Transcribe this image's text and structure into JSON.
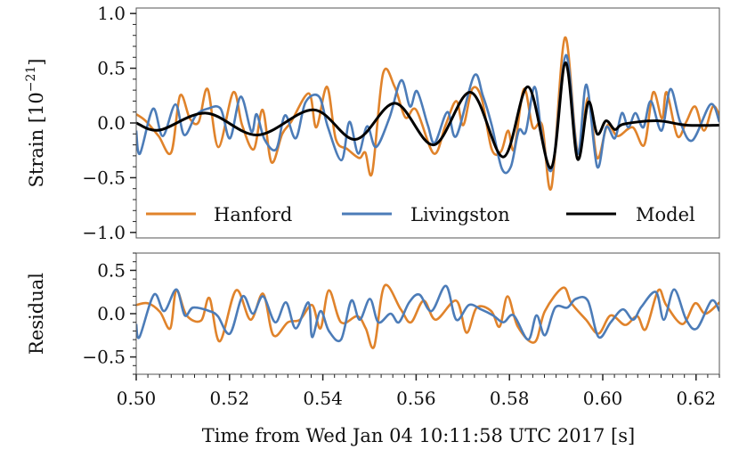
{
  "chart_data": [
    {
      "type": "line",
      "panel": "top",
      "ylabel": "Strain [10",
      "ylabel_exponent": "−21",
      "ylabel_suffix": "]",
      "xlim": [
        0.5,
        0.625
      ],
      "ylim": [
        -1.05,
        1.05
      ],
      "yticks": [
        1.0,
        0.5,
        0.0,
        -0.5,
        -1.0
      ],
      "ytick_labels": [
        "1.0",
        "0.5",
        "0.0",
        "−0.5",
        "−1.0"
      ],
      "grid": false,
      "legend": {
        "placement": "bottom",
        "entries": [
          "Hanford",
          "Livingston",
          "Model"
        ]
      },
      "series": [
        {
          "name": "Hanford",
          "color": "#e0832b",
          "x": [
            0.5,
            0.502,
            0.5048,
            0.5075,
            0.5094,
            0.5115,
            0.5134,
            0.5153,
            0.5176,
            0.5208,
            0.5227,
            0.5252,
            0.5271,
            0.529,
            0.5313,
            0.5332,
            0.537,
            0.5386,
            0.5409,
            0.5428,
            0.5453,
            0.5478,
            0.5491,
            0.5506,
            0.5529,
            0.5554,
            0.5577,
            0.56,
            0.5638,
            0.5663,
            0.5686,
            0.5701,
            0.572,
            0.574,
            0.5762,
            0.5782,
            0.5797,
            0.581,
            0.5831,
            0.585,
            0.587,
            0.589,
            0.5919,
            0.5946,
            0.5969,
            0.5988,
            0.601,
            0.6032,
            0.6064,
            0.6089,
            0.6108,
            0.6127,
            0.6137,
            0.616,
            0.6179,
            0.6198,
            0.6217,
            0.6236,
            0.625
          ],
          "y": [
            0.08,
            0.02,
            -0.12,
            -0.27,
            0.25,
            0.04,
            0.01,
            0.31,
            -0.22,
            0.28,
            -0.02,
            -0.24,
            0.12,
            -0.36,
            -0.1,
            0.01,
            0.27,
            -0.04,
            0.33,
            -0.15,
            -0.24,
            -0.32,
            -0.27,
            -0.45,
            0.45,
            0.33,
            0.05,
            0.12,
            -0.28,
            -0.02,
            0.2,
            -0.02,
            0.31,
            0.23,
            -0.24,
            -0.26,
            -0.07,
            -0.24,
            0.31,
            -0.04,
            -0.02,
            -0.59,
            0.78,
            -0.26,
            0.23,
            -0.32,
            -0.02,
            -0.12,
            -0.04,
            -0.2,
            0.28,
            0.04,
            0.28,
            -0.12,
            0.01,
            0.15,
            -0.07,
            0.15,
            0.07
          ]
        },
        {
          "name": "Livingston",
          "color": "#4c7cb8",
          "x": [
            0.5,
            0.5008,
            0.5036,
            0.5057,
            0.5084,
            0.5103,
            0.5128,
            0.5153,
            0.5181,
            0.5201,
            0.5224,
            0.5247,
            0.5258,
            0.5275,
            0.53,
            0.5319,
            0.5342,
            0.5363,
            0.5392,
            0.5411,
            0.544,
            0.5457,
            0.5476,
            0.5495,
            0.5514,
            0.5543,
            0.5568,
            0.5587,
            0.5602,
            0.5625,
            0.564,
            0.5667,
            0.5686,
            0.5724,
            0.5743,
            0.5762,
            0.5784,
            0.5803,
            0.582,
            0.5835,
            0.5854,
            0.587,
            0.5892,
            0.5921,
            0.5946,
            0.5965,
            0.5988,
            0.6007,
            0.6026,
            0.6041,
            0.6055,
            0.607,
            0.6087,
            0.6103,
            0.6126,
            0.6145,
            0.6166,
            0.6192,
            0.6231,
            0.625
          ],
          "y": [
            -0.07,
            -0.28,
            0.13,
            -0.12,
            0.17,
            -0.11,
            0.07,
            0.13,
            0.13,
            -0.14,
            0.24,
            -0.08,
            0.08,
            -0.15,
            -0.24,
            0.07,
            -0.14,
            0.19,
            0.24,
            -0.04,
            -0.34,
            0.01,
            -0.28,
            -0.03,
            -0.22,
            0.05,
            0.39,
            0.15,
            0.29,
            -0.02,
            -0.18,
            0.1,
            -0.12,
            0.43,
            0.25,
            -0.02,
            -0.42,
            -0.4,
            -0.07,
            -0.08,
            0.33,
            -0.12,
            -0.41,
            0.62,
            -0.28,
            0.35,
            -0.4,
            -0.04,
            -0.14,
            0.09,
            -0.04,
            0.09,
            -0.04,
            0.2,
            -0.07,
            0.31,
            0.01,
            -0.16,
            0.17,
            0.01
          ]
        },
        {
          "name": "Model",
          "color": "#000000",
          "x": [
            0.5,
            0.505,
            0.515,
            0.526,
            0.538,
            0.547,
            0.5555,
            0.5638,
            0.5717,
            0.5787,
            0.584,
            0.5889,
            0.592,
            0.5946,
            0.5969,
            0.5988,
            0.6007,
            0.6026,
            0.6045,
            0.6116,
            0.618,
            0.625
          ],
          "y": [
            0.0,
            -0.065,
            0.09,
            -0.11,
            0.12,
            -0.15,
            0.18,
            -0.2,
            0.28,
            -0.31,
            0.33,
            -0.41,
            0.55,
            -0.33,
            0.19,
            -0.1,
            0.02,
            -0.06,
            -0.01,
            0.02,
            -0.02,
            -0.02
          ]
        }
      ]
    },
    {
      "type": "line",
      "panel": "bottom",
      "xlabel": "Time from Wed Jan 04 10:11:58 UTC 2017 [s]",
      "ylabel": "Residual",
      "xlim": [
        0.5,
        0.625
      ],
      "ylim": [
        -0.7,
        0.7
      ],
      "xticks": [
        0.5,
        0.52,
        0.54,
        0.56,
        0.58,
        0.6,
        0.62
      ],
      "xtick_labels": [
        "0.50",
        "0.52",
        "0.54",
        "0.56",
        "0.58",
        "0.60",
        "0.62"
      ],
      "yticks": [
        0.5,
        0.0,
        -0.5
      ],
      "ytick_labels": [
        "0.5",
        "0.0",
        "−0.5"
      ],
      "grid": false,
      "series": [
        {
          "name": "Hanford",
          "color": "#e0832b",
          "x": [
            0.5,
            0.5025,
            0.5051,
            0.5073,
            0.5086,
            0.5108,
            0.5139,
            0.5157,
            0.5179,
            0.5214,
            0.5245,
            0.5272,
            0.5294,
            0.5325,
            0.5351,
            0.5377,
            0.5395,
            0.5413,
            0.5439,
            0.5474,
            0.5492,
            0.551,
            0.5532,
            0.5567,
            0.5589,
            0.5616,
            0.5642,
            0.5686,
            0.5708,
            0.573,
            0.5761,
            0.5779,
            0.5796,
            0.5818,
            0.5854,
            0.5876,
            0.5915,
            0.5933,
            0.5964,
            0.5991,
            0.6017,
            0.6048,
            0.6074,
            0.6092,
            0.6119,
            0.6136,
            0.6171,
            0.6198,
            0.622,
            0.625
          ],
          "y": [
            0.1,
            0.12,
            0.02,
            -0.17,
            0.27,
            -0.02,
            -0.08,
            0.18,
            -0.32,
            0.27,
            -0.07,
            0.23,
            -0.25,
            -0.1,
            -0.07,
            0.1,
            -0.17,
            0.27,
            -0.1,
            -0.03,
            -0.17,
            -0.38,
            0.32,
            0.05,
            -0.1,
            0.15,
            -0.07,
            0.15,
            -0.22,
            0.07,
            0.03,
            -0.15,
            0.2,
            -0.15,
            -0.33,
            0.03,
            0.3,
            0.12,
            -0.07,
            -0.23,
            -0.02,
            -0.13,
            -0.03,
            -0.18,
            0.27,
            0.1,
            -0.12,
            0.12,
            0.0,
            0.13
          ]
        },
        {
          "name": "Livingston",
          "color": "#4c7cb8",
          "x": [
            0.5,
            0.5007,
            0.5038,
            0.506,
            0.5086,
            0.5104,
            0.5122,
            0.5157,
            0.5175,
            0.5201,
            0.5228,
            0.525,
            0.5272,
            0.5298,
            0.5321,
            0.5342,
            0.5369,
            0.5377,
            0.5395,
            0.5413,
            0.5439,
            0.5461,
            0.5479,
            0.5501,
            0.5519,
            0.5545,
            0.5563,
            0.5585,
            0.5607,
            0.5633,
            0.5664,
            0.5686,
            0.5713,
            0.5739,
            0.5765,
            0.5787,
            0.5809,
            0.584,
            0.5858,
            0.5876,
            0.5898,
            0.5924,
            0.5942,
            0.5968,
            0.5991,
            0.6017,
            0.6043,
            0.6065,
            0.6083,
            0.6114,
            0.6131,
            0.6153,
            0.6179,
            0.6202,
            0.6233,
            0.625
          ],
          "y": [
            -0.12,
            -0.27,
            0.22,
            0.03,
            0.28,
            -0.02,
            0.07,
            0.03,
            -0.03,
            -0.23,
            0.2,
            0.0,
            0.2,
            -0.1,
            0.13,
            -0.17,
            0.13,
            -0.27,
            0.03,
            -0.2,
            -0.3,
            0.15,
            -0.07,
            0.17,
            -0.1,
            0.0,
            -0.1,
            0.13,
            0.22,
            0.03,
            0.32,
            -0.07,
            0.1,
            0.05,
            -0.02,
            -0.1,
            -0.02,
            -0.3,
            -0.02,
            -0.25,
            0.07,
            0.07,
            0.17,
            0.15,
            -0.27,
            -0.1,
            0.05,
            -0.07,
            0.08,
            0.25,
            -0.07,
            0.28,
            -0.07,
            -0.17,
            0.15,
            0.03
          ]
        }
      ]
    }
  ]
}
